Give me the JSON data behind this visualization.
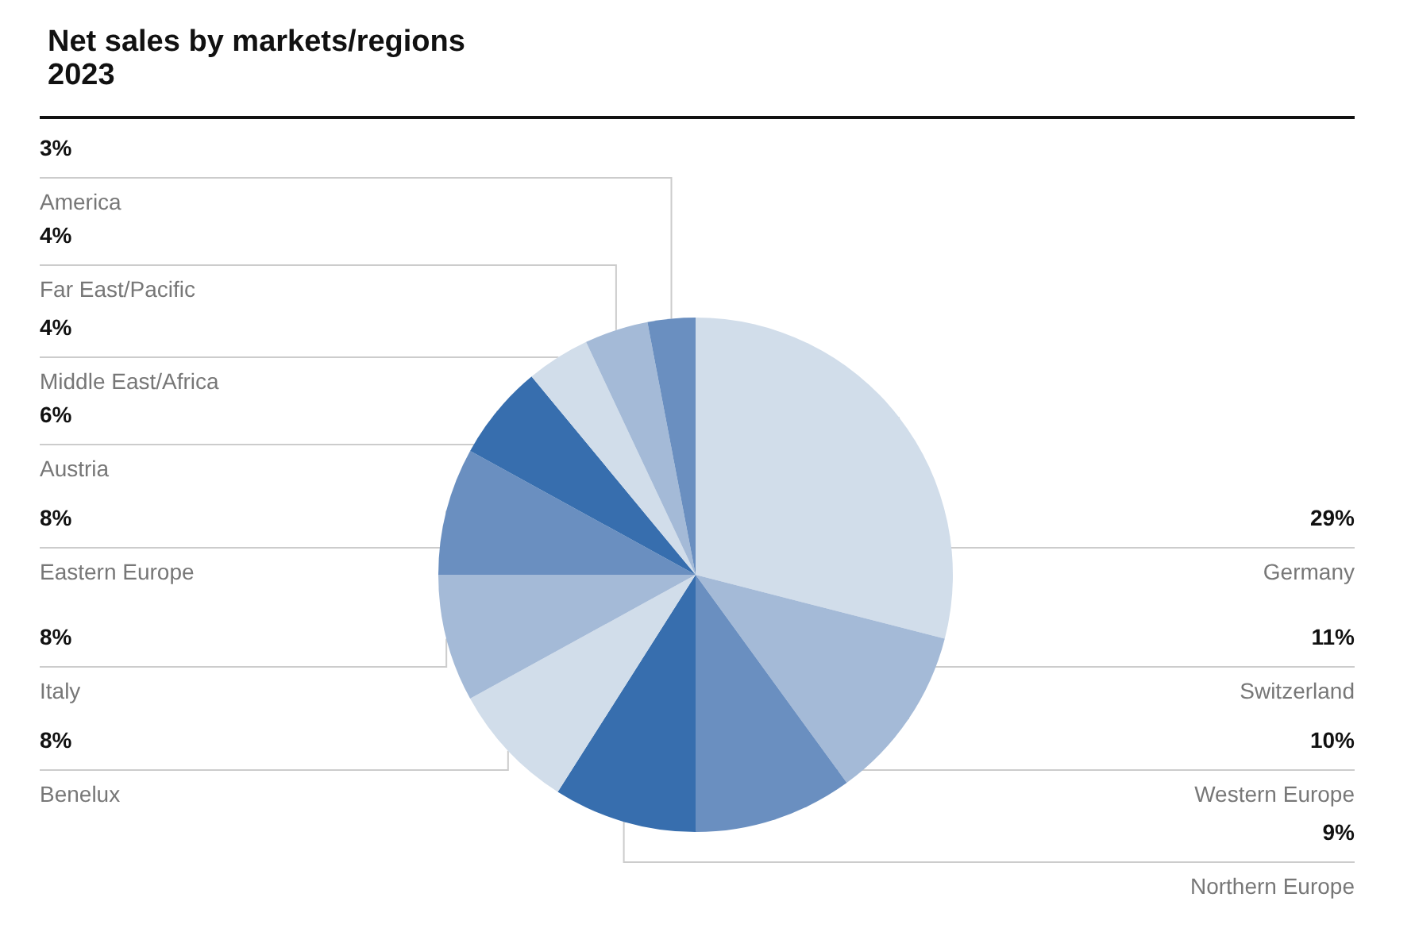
{
  "chart_data": {
    "type": "pie",
    "title": "Net sales by markets/regions",
    "subtitle": "2023",
    "categories": [
      "Germany",
      "Switzerland",
      "Western Europe",
      "Northern Europe",
      "Benelux",
      "Italy",
      "Eastern Europe",
      "Austria",
      "Middle East/Africa",
      "Far East/Pacific",
      "America"
    ],
    "values": [
      29,
      11,
      10,
      9,
      8,
      8,
      8,
      6,
      4,
      4,
      3
    ],
    "value_labels": [
      "29%",
      "11%",
      "10%",
      "9%",
      "8%",
      "8%",
      "8%",
      "6%",
      "4%",
      "4%",
      "3%"
    ],
    "colors": [
      "#d1ddea",
      "#a4bad7",
      "#6a8fc0",
      "#376eae",
      "#d1ddea",
      "#a4bad7",
      "#6a8fc0",
      "#376eae",
      "#d1ddea",
      "#a4bad7",
      "#6a8fc0"
    ],
    "legend": false
  }
}
